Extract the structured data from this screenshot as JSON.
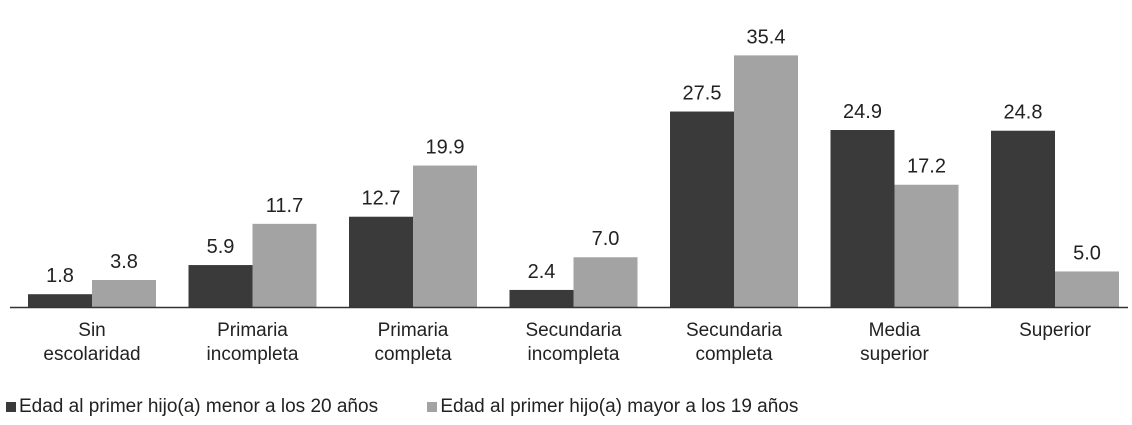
{
  "chart_data": {
    "type": "bar",
    "categories": [
      [
        "Sin",
        "escolaridad"
      ],
      [
        "Primaria",
        "incompleta"
      ],
      [
        "Primaria",
        "completa"
      ],
      [
        "Secundaria",
        "incompleta"
      ],
      [
        "Secundaria",
        "completa"
      ],
      [
        "Media",
        "superior"
      ],
      [
        "Superior"
      ]
    ],
    "series": [
      {
        "name": "Edad al primer hijo(a) menor a los 20 años",
        "color": "#3a3a3a",
        "values": [
          1.8,
          5.9,
          12.7,
          2.4,
          27.5,
          24.9,
          24.8
        ]
      },
      {
        "name": "Edad al primer hijo(a) mayor a los 19 años",
        "color": "#a3a3a3",
        "values": [
          3.8,
          11.7,
          19.9,
          7.0,
          35.4,
          17.2,
          5.0
        ]
      }
    ],
    "ylim": [
      0,
      37
    ],
    "grid": false,
    "legend_position": "bottom-left"
  }
}
